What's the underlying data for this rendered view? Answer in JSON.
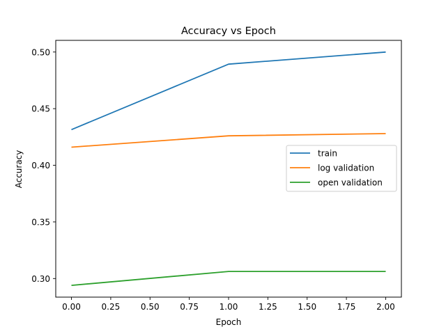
{
  "chart_data": {
    "type": "line",
    "title": "Accuracy vs Epoch",
    "xlabel": "Epoch",
    "ylabel": "Accuracy",
    "xlim": [
      -0.1,
      2.1
    ],
    "ylim": [
      0.2836,
      0.5103
    ],
    "xticks": [
      0.0,
      0.25,
      0.5,
      0.75,
      1.0,
      1.25,
      1.5,
      1.75,
      2.0
    ],
    "xtick_labels": [
      "0.00",
      "0.25",
      "0.50",
      "0.75",
      "1.00",
      "1.25",
      "1.50",
      "1.75",
      "2.00"
    ],
    "yticks": [
      0.3,
      0.35,
      0.4,
      0.45,
      0.5
    ],
    "ytick_labels": [
      "0.30",
      "0.35",
      "0.40",
      "0.45",
      "0.50"
    ],
    "grid": false,
    "legend_position": "center-right",
    "x": [
      0,
      1,
      2
    ],
    "series": [
      {
        "name": "train",
        "color": "#1f77b4",
        "values": [
          0.4315,
          0.4893,
          0.5
        ]
      },
      {
        "name": "log validation",
        "color": "#ff7f0e",
        "values": [
          0.416,
          0.426,
          0.428
        ]
      },
      {
        "name": "open validation",
        "color": "#2ca02c",
        "values": [
          0.294,
          0.3063,
          0.3063
        ]
      }
    ]
  }
}
